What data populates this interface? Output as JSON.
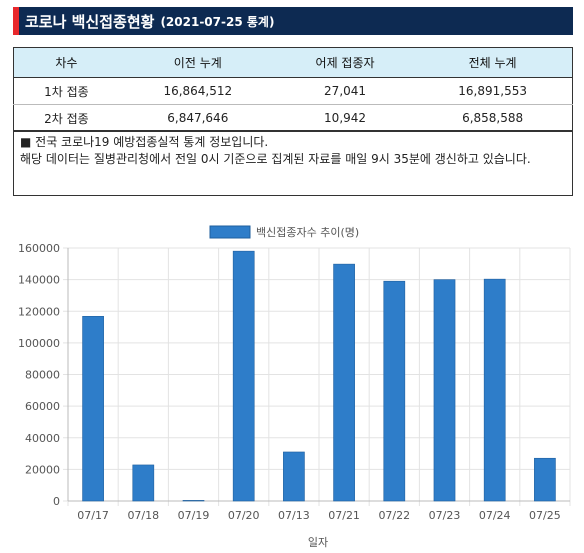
{
  "header": {
    "title": "코로나 백신접종현황",
    "date": "(2021-07-25 통계)"
  },
  "table": {
    "columns": [
      "차수",
      "이전 누계",
      "어제 접종자",
      "전체 누계"
    ],
    "rows": [
      [
        "1차 접종",
        "16,864,512",
        "27,041",
        "16,891,553"
      ],
      [
        "2차 접종",
        "6,847,646",
        "10,942",
        "6,858,588"
      ]
    ]
  },
  "note": {
    "line1": "■ 전국 코로나19 예방접종실적 통계 정보입니다.",
    "line2": "해당 데이터는 질병관리청에서 전일 0시 기준으로 집계된 자료를 매일 9시 35분에 갱신하고 있습니다."
  },
  "colors": {
    "header_bg": "#0d2a52",
    "accent": "#e8282c",
    "bar": "#2e7dc9",
    "table_header": "#d6eef8"
  },
  "chart_data": {
    "type": "bar",
    "categories": [
      "07/17",
      "07/18",
      "07/19",
      "07/20",
      "07/13",
      "07/21",
      "07/22",
      "07/23",
      "07/24",
      "07/25"
    ],
    "series": [
      {
        "name": "백신접종자수 추이(명)",
        "values": [
          116800,
          22800,
          300,
          158000,
          31000,
          149800,
          139000,
          140000,
          140300,
          27041
        ]
      }
    ],
    "xlabel": "일자",
    "ylabel": "",
    "ylim": [
      0,
      160000
    ],
    "yticks": [
      0,
      20000,
      40000,
      60000,
      80000,
      100000,
      120000,
      140000,
      160000
    ],
    "grid": true,
    "legend": "top-center"
  }
}
